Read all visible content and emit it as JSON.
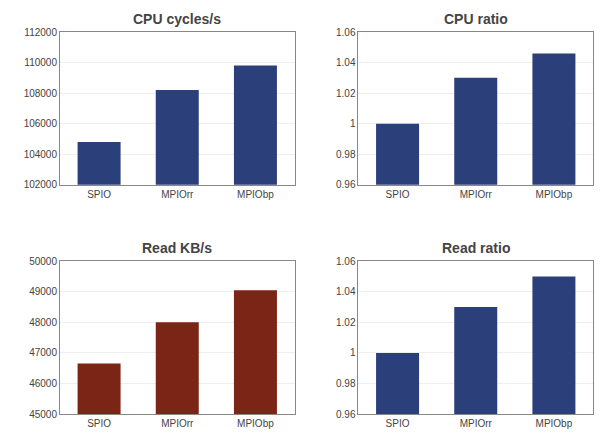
{
  "chart_data": [
    {
      "type": "bar",
      "title": "CPU cycles/s",
      "categories": [
        "SPIO",
        "MPIOrr",
        "MPIObp"
      ],
      "values": [
        104800,
        108200,
        109800
      ],
      "color": "#2B3F7A",
      "ylim": [
        102000,
        112000
      ],
      "yticks": [
        102000,
        104000,
        106000,
        108000,
        110000,
        112000
      ],
      "grid": true
    },
    {
      "type": "bar",
      "title": "CPU ratio",
      "categories": [
        "SPIO",
        "MPIOrr",
        "MPIObp"
      ],
      "values": [
        1.0,
        1.03,
        1.046
      ],
      "color": "#2B3F7A",
      "ylim": [
        0.96,
        1.06
      ],
      "yticks": [
        0.96,
        0.98,
        1,
        1.02,
        1.04,
        1.06
      ],
      "grid": true
    },
    {
      "type": "bar",
      "title": "Read KB/s",
      "categories": [
        "SPIO",
        "MPIOrr",
        "MPIObp"
      ],
      "values": [
        46650,
        48000,
        49050
      ],
      "color": "#7A2515",
      "ylim": [
        45000,
        50000
      ],
      "yticks": [
        45000,
        46000,
        47000,
        48000,
        49000,
        50000
      ],
      "grid": true
    },
    {
      "type": "bar",
      "title": "Read ratio",
      "categories": [
        "SPIO",
        "MPIOrr",
        "MPIObp"
      ],
      "values": [
        1.0,
        1.03,
        1.05
      ],
      "color": "#2B3F7A",
      "ylim": [
        0.96,
        1.06
      ],
      "yticks": [
        0.96,
        0.98,
        1,
        1.02,
        1.04,
        1.06
      ],
      "grid": true
    }
  ]
}
